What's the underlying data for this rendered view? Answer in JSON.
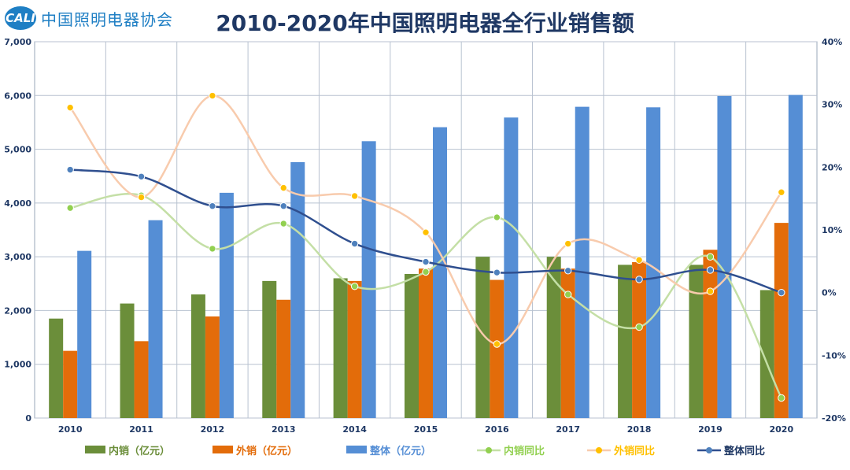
{
  "header": {
    "logo_badge": "CALI",
    "logo_text": "中国照明电器协会",
    "title": "2010-2020年中国照明电器全行业销售额"
  },
  "chart_data": {
    "type": "bar",
    "title": "2010-2020年中国照明电器全行业销售额",
    "categories": [
      "2010",
      "2011",
      "2012",
      "2013",
      "2014",
      "2015",
      "2016",
      "2017",
      "2018",
      "2019",
      "2020"
    ],
    "ylim": [
      0,
      7000
    ],
    "y2lim": [
      -20,
      40
    ],
    "y_ticks": [
      "0",
      "1,000",
      "2,000",
      "3,000",
      "4,000",
      "5,000",
      "6,000",
      "7,000"
    ],
    "y2_ticks": [
      "-20%",
      "-10%",
      "0%",
      "10%",
      "20%",
      "30%",
      "40%"
    ],
    "grid": true,
    "legend_position": "bottom",
    "series": [
      {
        "name": "内销（亿元）",
        "kind": "bar",
        "axis": "left",
        "color": "#6b8e3a",
        "values": [
          1850,
          2130,
          2300,
          2550,
          2600,
          2680,
          3000,
          3000,
          2850,
          2850,
          2380
        ]
      },
      {
        "name": "外销（亿元）",
        "kind": "bar",
        "axis": "left",
        "color": "#e36c0a",
        "values": [
          1250,
          1430,
          1890,
          2200,
          2550,
          2780,
          2570,
          2780,
          2900,
          3130,
          3630
        ]
      },
      {
        "name": "整体（亿元）",
        "kind": "bar",
        "axis": "left",
        "color": "#558ed5",
        "values": [
          3110,
          3680,
          4190,
          4760,
          5150,
          5410,
          5590,
          5790,
          5780,
          5990,
          6010
        ]
      },
      {
        "name": "内销同比",
        "kind": "line",
        "axis": "right",
        "color": "#92d050",
        "line_color": "#c4dfa6",
        "values": [
          13.5,
          15.5,
          7.0,
          11.0,
          1.0,
          3.3,
          12.0,
          -0.3,
          -5.5,
          5.7,
          -16.8
        ]
      },
      {
        "name": "外销同比",
        "kind": "line",
        "axis": "right",
        "color": "#ffc000",
        "line_color": "#f8cbad",
        "values": [
          29.5,
          15.2,
          31.4,
          16.7,
          15.4,
          9.6,
          -8.2,
          7.8,
          5.2,
          0.2,
          16.0
        ]
      },
      {
        "name": "整体同比",
        "kind": "line",
        "axis": "right",
        "color": "#4f81bd",
        "line_color": "#2f4f8f",
        "values": [
          19.6,
          18.5,
          13.8,
          13.8,
          7.8,
          4.9,
          3.2,
          3.5,
          2.1,
          3.6,
          0.0
        ]
      }
    ]
  }
}
